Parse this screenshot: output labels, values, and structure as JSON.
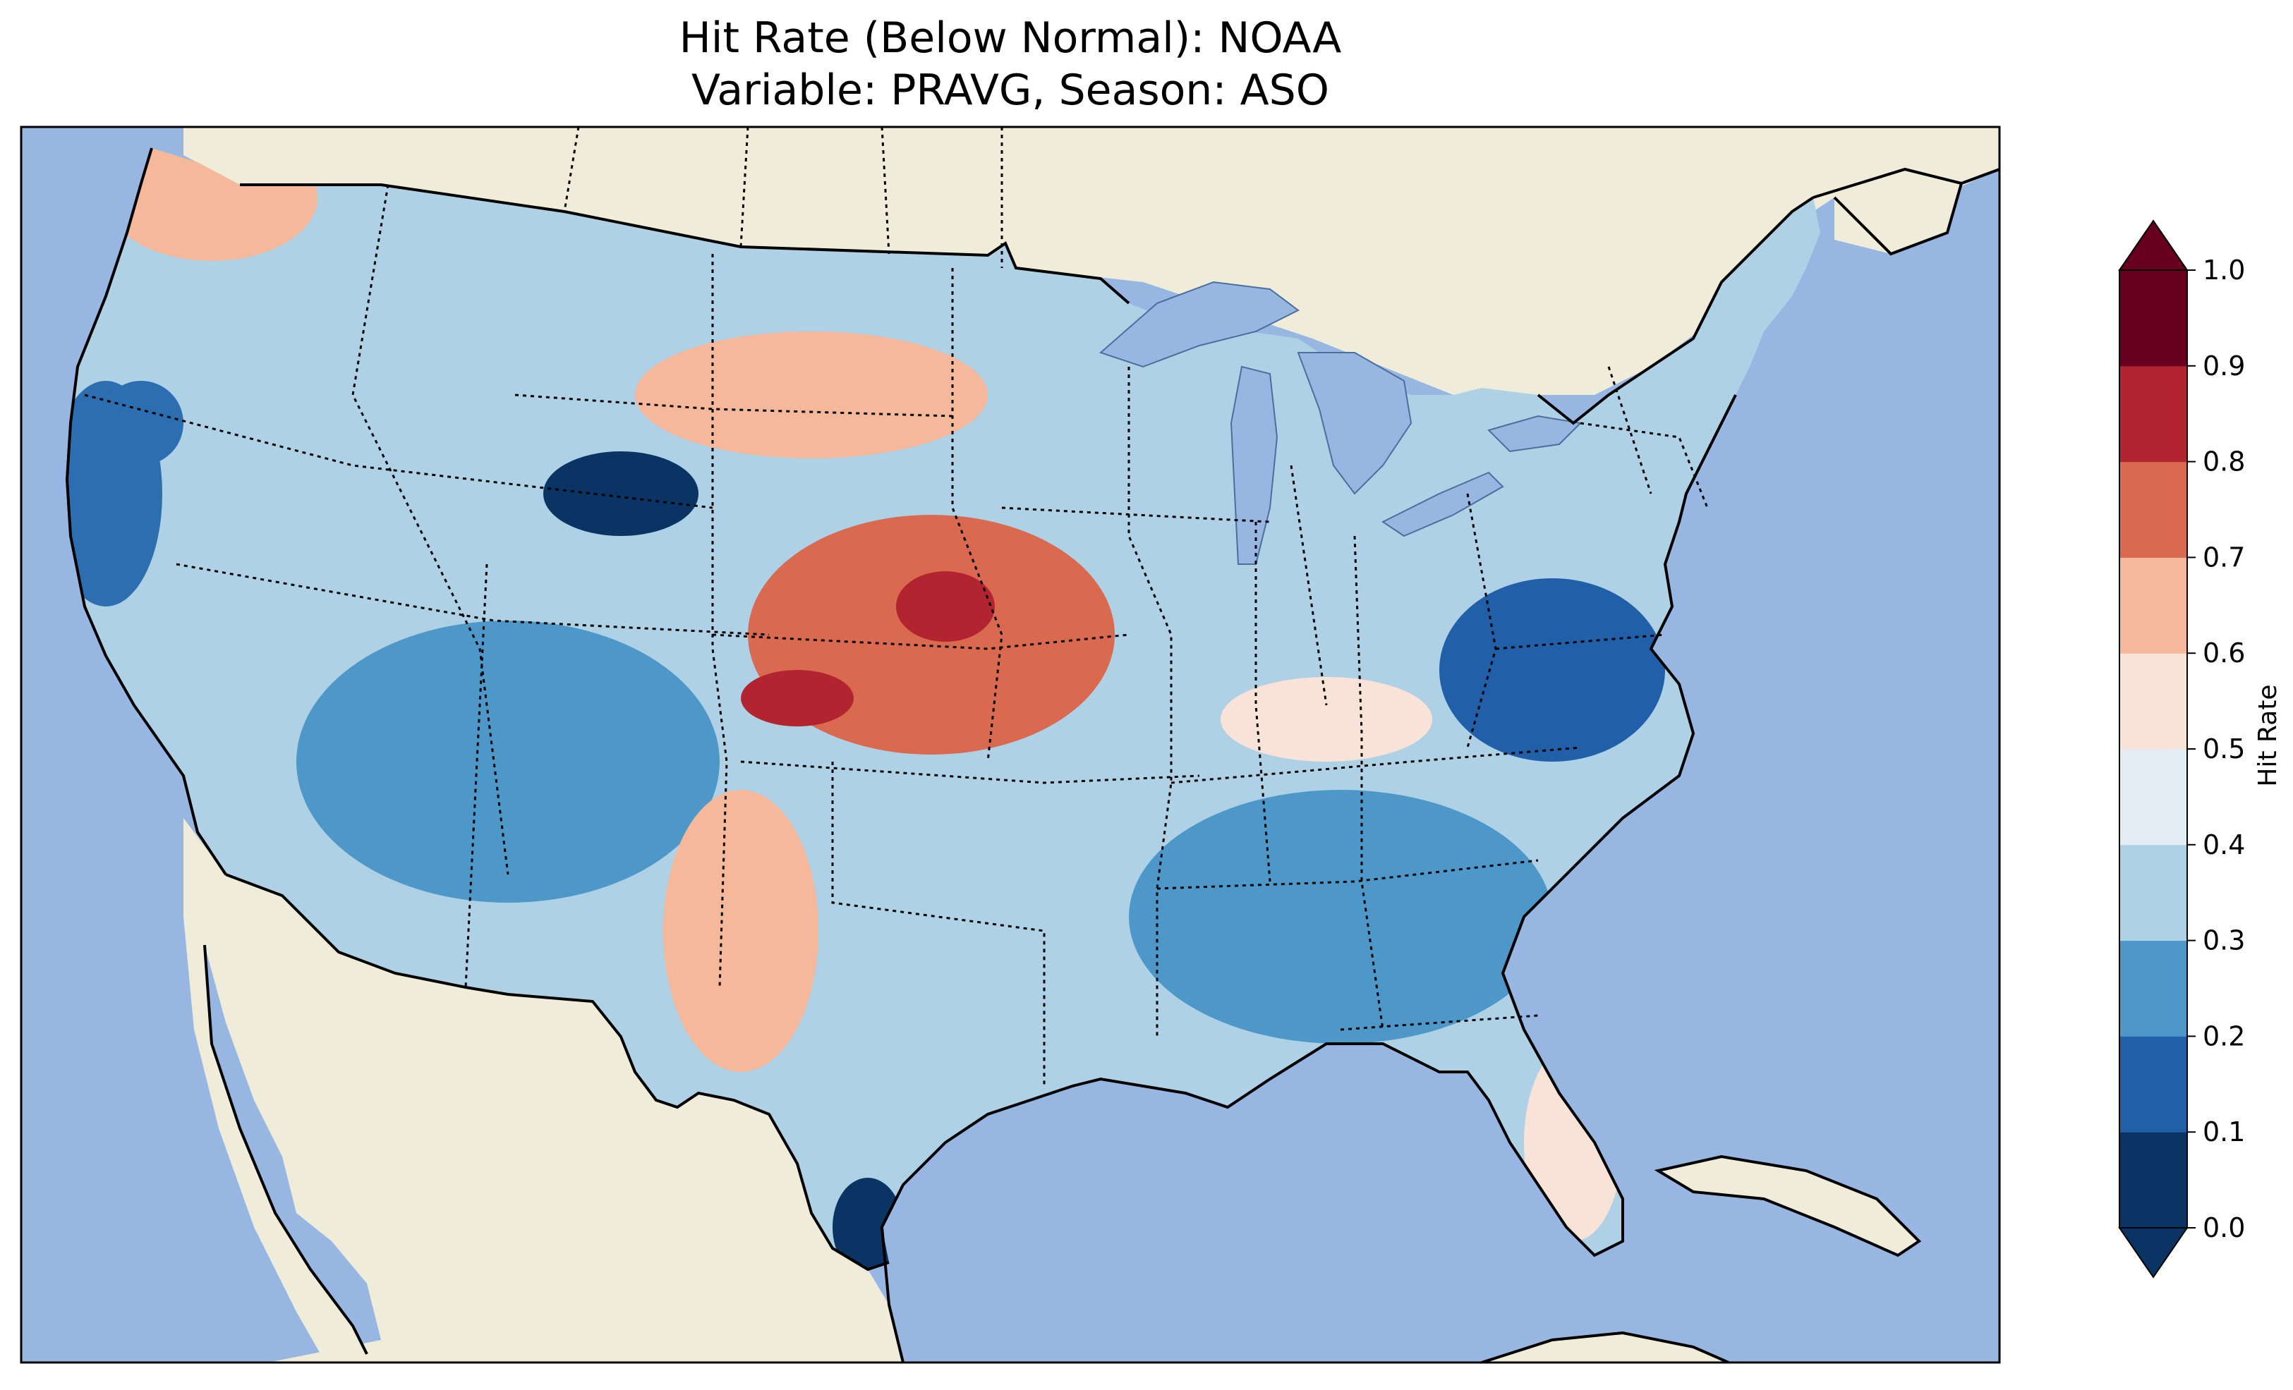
{
  "title": {
    "line1": "Hit Rate (Below Normal): NOAA",
    "line2": "Variable: PRAVG, Season: ASO"
  },
  "map": {
    "ocean_color": "#97b6e1",
    "land_color": "#efedd9",
    "region": "Contiguous United States",
    "regions": [
      {
        "name": "Pacific Northwest",
        "value": 0.55,
        "color": "#f5b89a"
      },
      {
        "name": "California coast",
        "value": 0.15,
        "color": "#2d6eb0"
      },
      {
        "name": "Great Basin",
        "value": 0.35,
        "color": "#aed1e5"
      },
      {
        "name": "Wyoming",
        "value": 0.05,
        "color": "#093463"
      },
      {
        "name": "Northern Plains",
        "value": 0.65,
        "color": "#f5b89a"
      },
      {
        "name": "Central Plains",
        "value": 0.75,
        "color": "#d9694f"
      },
      {
        "name": "Kansas core",
        "value": 0.85,
        "color": "#b2242f"
      },
      {
        "name": "Southwest",
        "value": 0.3,
        "color": "#4d97c9"
      },
      {
        "name": "West Texas",
        "value": 0.65,
        "color": "#f5b89a"
      },
      {
        "name": "South Texas tip",
        "value": 0.05,
        "color": "#093463"
      },
      {
        "name": "Southeast",
        "value": 0.3,
        "color": "#4d97c9"
      },
      {
        "name": "Mid-Atlantic",
        "value": 0.1,
        "color": "#215fa8"
      },
      {
        "name": "Ohio Valley",
        "value": 0.55,
        "color": "#f9e3d9"
      },
      {
        "name": "Florida",
        "value": 0.5,
        "color": "#f9e3d9"
      },
      {
        "name": "New England",
        "value": 0.35,
        "color": "#aed1e5"
      }
    ]
  },
  "colorbar": {
    "label": "Hit Rate",
    "ticks": [
      "0.0",
      "0.1",
      "0.2",
      "0.3",
      "0.4",
      "0.5",
      "0.6",
      "0.7",
      "0.8",
      "0.9",
      "1.0"
    ],
    "colors": [
      "#093463",
      "#215fa8",
      "#4d97c9",
      "#aed1e5",
      "#e3eef4",
      "#f9e3d9",
      "#f5b89a",
      "#d9694f",
      "#b2242f",
      "#67001f"
    ],
    "extend": "both",
    "range": [
      0.0,
      1.0
    ]
  }
}
